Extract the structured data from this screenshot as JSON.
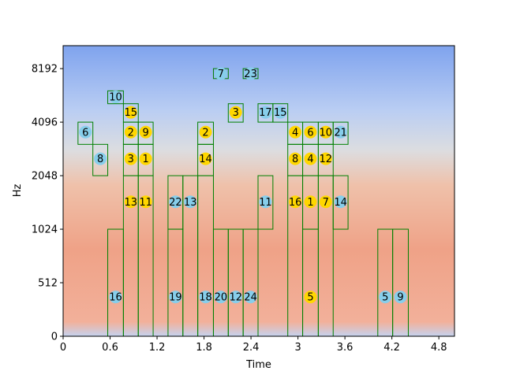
{
  "chart_data": {
    "type": "spectrogram-boxes",
    "xlabel": "Time",
    "ylabel": "Hz",
    "xlim": [
      0,
      5.0
    ],
    "xticks": [
      0,
      0.6,
      1.2,
      1.8,
      2.4,
      3,
      3.6,
      4.2,
      4.8
    ],
    "ylim": [
      0,
      11025
    ],
    "yticks": [
      0,
      512,
      1024,
      2048,
      4096,
      8192
    ],
    "yscale": "symlog",
    "linthresh": 512,
    "box_color": "#008000",
    "boxes": [
      {
        "label": 7,
        "color": "#87ceeb",
        "x": [
          1.92,
          2.11
        ],
        "y": [
          7200,
          8192
        ],
        "marker_y": 7670
      },
      {
        "label": 23,
        "color": "#87ceeb",
        "x": [
          2.3,
          2.49
        ],
        "y": [
          7200,
          8192
        ],
        "marker_y": 7670
      },
      {
        "label": 10,
        "color": "#87ceeb",
        "x": [
          0.57,
          0.77
        ],
        "y": [
          5200,
          6144
        ],
        "marker_y": 5680
      },
      {
        "label": 15,
        "color": "#ffd700",
        "x": [
          0.77,
          0.96
        ],
        "y": [
          4096,
          5200
        ],
        "marker_y": 4650
      },
      {
        "label": 3,
        "color": "#ffd700",
        "x": [
          2.11,
          2.3
        ],
        "y": [
          4096,
          5200
        ],
        "marker_y": 4650
      },
      {
        "label": 17,
        "color": "#87ceeb",
        "x": [
          2.49,
          2.68
        ],
        "y": [
          4096,
          5200
        ],
        "marker_y": 4650
      },
      {
        "label": 15,
        "color": "#87ceeb",
        "x": [
          2.68,
          2.87
        ],
        "y": [
          4096,
          5200
        ],
        "marker_y": 4650
      },
      {
        "label": 6,
        "color": "#87ceeb",
        "x": [
          0.19,
          0.38
        ],
        "y": [
          3072,
          4096
        ],
        "marker_y": 3600
      },
      {
        "label": 2,
        "color": "#ffd700",
        "x": [
          0.77,
          0.96
        ],
        "y": [
          3072,
          4096
        ],
        "marker_y": 3600
      },
      {
        "label": 9,
        "color": "#ffd700",
        "x": [
          0.96,
          1.15
        ],
        "y": [
          3072,
          4096
        ],
        "marker_y": 3600
      },
      {
        "label": 2,
        "color": "#ffd700",
        "x": [
          1.72,
          1.92
        ],
        "y": [
          3072,
          4096
        ],
        "marker_y": 3600
      },
      {
        "label": 4,
        "color": "#ffd700",
        "x": [
          2.87,
          3.06
        ],
        "y": [
          3072,
          4096
        ],
        "marker_y": 3600
      },
      {
        "label": 6,
        "color": "#ffd700",
        "x": [
          3.06,
          3.26
        ],
        "y": [
          3072,
          4096
        ],
        "marker_y": 3600
      },
      {
        "label": 10,
        "color": "#ffd700",
        "x": [
          3.26,
          3.45
        ],
        "y": [
          3072,
          4096
        ],
        "marker_y": 3600
      },
      {
        "label": 21,
        "color": "#87ceeb",
        "x": [
          3.45,
          3.64
        ],
        "y": [
          3072,
          4096
        ],
        "marker_y": 3600
      },
      {
        "label": 8,
        "color": "#87ceeb",
        "x": [
          0.38,
          0.57
        ],
        "y": [
          2048,
          3072
        ],
        "marker_y": 2550
      },
      {
        "label": 3,
        "color": "#ffd700",
        "x": [
          0.77,
          0.96
        ],
        "y": [
          2048,
          3072
        ],
        "marker_y": 2550
      },
      {
        "label": 1,
        "color": "#ffd700",
        "x": [
          0.96,
          1.15
        ],
        "y": [
          2048,
          3072
        ],
        "marker_y": 2550
      },
      {
        "label": 14,
        "color": "#ffd700",
        "x": [
          1.72,
          1.92
        ],
        "y": [
          2048,
          3072
        ],
        "marker_y": 2550
      },
      {
        "label": 8,
        "color": "#ffd700",
        "x": [
          2.87,
          3.06
        ],
        "y": [
          2048,
          3072
        ],
        "marker_y": 2550
      },
      {
        "label": 4,
        "color": "#ffd700",
        "x": [
          3.06,
          3.26
        ],
        "y": [
          2048,
          3072
        ],
        "marker_y": 2550
      },
      {
        "label": 12,
        "color": "#ffd700",
        "x": [
          3.26,
          3.45
        ],
        "y": [
          2048,
          3072
        ],
        "marker_y": 2550
      },
      {
        "label": 13,
        "color": "#ffd700",
        "x": [
          0.77,
          0.96
        ],
        "y": [
          0,
          2048
        ],
        "marker_y": 1460
      },
      {
        "label": 11,
        "color": "#ffd700",
        "x": [
          0.96,
          1.15
        ],
        "y": [
          0,
          2048
        ],
        "marker_y": 1460
      },
      {
        "label": 22,
        "color": "#87ceeb",
        "x": [
          1.34,
          1.53
        ],
        "y": [
          1024,
          2048
        ],
        "marker_y": 1460
      },
      {
        "label": 13,
        "color": "#87ceeb",
        "x": [
          1.53,
          1.72
        ],
        "y": [
          0,
          2048
        ],
        "marker_y": 1460
      },
      {
        "label": 11,
        "color": "#87ceeb",
        "x": [
          2.49,
          2.68
        ],
        "y": [
          1024,
          2048
        ],
        "marker_y": 1460
      },
      {
        "label": 16,
        "color": "#ffd700",
        "x": [
          2.87,
          3.06
        ],
        "y": [
          0,
          2048
        ],
        "marker_y": 1460
      },
      {
        "label": 1,
        "color": "#ffd700",
        "x": [
          3.06,
          3.26
        ],
        "y": [
          1024,
          2048
        ],
        "marker_y": 1460
      },
      {
        "label": 7,
        "color": "#ffd700",
        "x": [
          3.26,
          3.45
        ],
        "y": [
          0,
          2048
        ],
        "marker_y": 1460
      },
      {
        "label": 14,
        "color": "#87ceeb",
        "x": [
          3.45,
          3.64
        ],
        "y": [
          1024,
          2048
        ],
        "marker_y": 1460
      },
      {
        "label": 16,
        "color": "#87ceeb",
        "x": [
          0.57,
          0.77
        ],
        "y": [
          0,
          1024
        ],
        "marker_y": 376
      },
      {
        "label": 19,
        "color": "#87ceeb",
        "x": [
          1.34,
          1.53
        ],
        "y": [
          0,
          1024
        ],
        "marker_y": 376
      },
      {
        "label": 18,
        "color": "#87ceeb",
        "x": [
          1.72,
          1.92
        ],
        "y": [
          0,
          2048
        ],
        "marker_y": 376
      },
      {
        "label": 20,
        "color": "#87ceeb",
        "x": [
          1.92,
          2.11
        ],
        "y": [
          0,
          1024
        ],
        "marker_y": 376
      },
      {
        "label": 12,
        "color": "#87ceeb",
        "x": [
          2.11,
          2.3
        ],
        "y": [
          0,
          1024
        ],
        "marker_y": 376
      },
      {
        "label": 24,
        "color": "#87ceeb",
        "x": [
          2.3,
          2.49
        ],
        "y": [
          0,
          1024
        ],
        "marker_y": 376
      },
      {
        "label": 5,
        "color": "#ffd700",
        "x": [
          3.06,
          3.26
        ],
        "y": [
          0,
          1024
        ],
        "marker_y": 376
      },
      {
        "label": 5,
        "color": "#87ceeb",
        "x": [
          4.02,
          4.21
        ],
        "y": [
          0,
          1024
        ],
        "marker_y": 376
      },
      {
        "label": 9,
        "color": "#87ceeb",
        "x": [
          4.21,
          4.41
        ],
        "y": [
          0,
          1024
        ],
        "marker_y": 376
      }
    ]
  }
}
